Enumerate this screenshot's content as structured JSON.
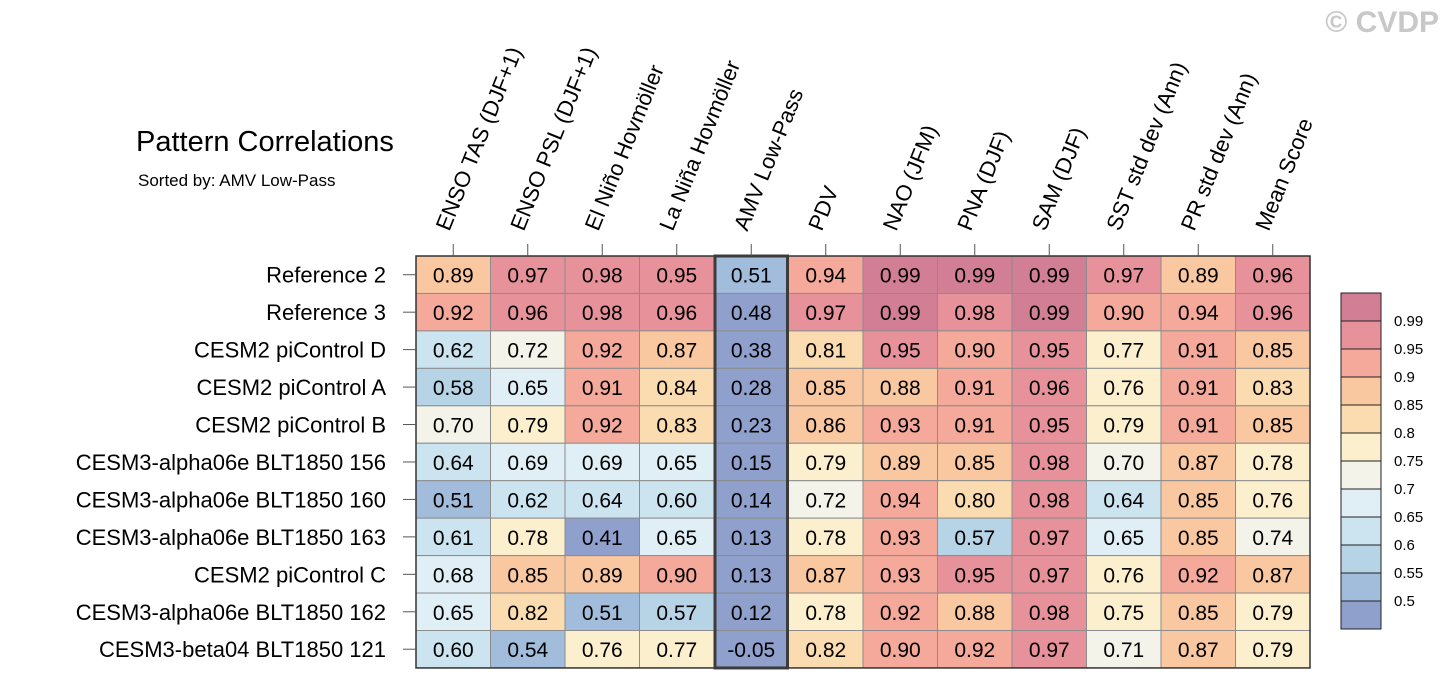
{
  "watermark": "© CVDP",
  "chart_data": {
    "type": "heatmap",
    "title": "Pattern Correlations",
    "subtitle": "Sorted by: AMV Low-Pass",
    "highlighted_column": "AMV Low-Pass",
    "columns": [
      "ENSO TAS (DJF+1)",
      "ENSO PSL (DJF+1)",
      "El Niño Hovmöller",
      "La Niña Hovmöller",
      "AMV Low-Pass",
      "PDV",
      "NAO (JFM)",
      "PNA (DJF)",
      "SAM (DJF)",
      "SST std dev (Ann)",
      "PR std dev (Ann)",
      "Mean Score"
    ],
    "rows": [
      {
        "name": "Reference 2",
        "values": [
          "0.89",
          "0.97",
          "0.98",
          "0.95",
          "0.51",
          "0.94",
          "0.99",
          "0.99",
          "0.99",
          "0.97",
          "0.89",
          "0.96"
        ]
      },
      {
        "name": "Reference 3",
        "values": [
          "0.92",
          "0.96",
          "0.98",
          "0.96",
          "0.48",
          "0.97",
          "0.99",
          "0.98",
          "0.99",
          "0.90",
          "0.94",
          "0.96"
        ]
      },
      {
        "name": "CESM2 piControl D",
        "values": [
          "0.62",
          "0.72",
          "0.92",
          "0.87",
          "0.38",
          "0.81",
          "0.95",
          "0.90",
          "0.95",
          "0.77",
          "0.91",
          "0.85"
        ]
      },
      {
        "name": "CESM2 piControl A",
        "values": [
          "0.58",
          "0.65",
          "0.91",
          "0.84",
          "0.28",
          "0.85",
          "0.88",
          "0.91",
          "0.96",
          "0.76",
          "0.91",
          "0.83"
        ]
      },
      {
        "name": "CESM2 piControl B",
        "values": [
          "0.70",
          "0.79",
          "0.92",
          "0.83",
          "0.23",
          "0.86",
          "0.93",
          "0.91",
          "0.95",
          "0.79",
          "0.91",
          "0.85"
        ]
      },
      {
        "name": "CESM3-alpha06e BLT1850 156",
        "values": [
          "0.64",
          "0.69",
          "0.69",
          "0.65",
          "0.15",
          "0.79",
          "0.89",
          "0.85",
          "0.98",
          "0.70",
          "0.87",
          "0.78"
        ]
      },
      {
        "name": "CESM3-alpha06e BLT1850 160",
        "values": [
          "0.51",
          "0.62",
          "0.64",
          "0.60",
          "0.14",
          "0.72",
          "0.94",
          "0.80",
          "0.98",
          "0.64",
          "0.85",
          "0.76"
        ]
      },
      {
        "name": "CESM3-alpha06e BLT1850 163",
        "values": [
          "0.61",
          "0.78",
          "0.41",
          "0.65",
          "0.13",
          "0.78",
          "0.93",
          "0.57",
          "0.97",
          "0.65",
          "0.85",
          "0.74"
        ]
      },
      {
        "name": "CESM2 piControl C",
        "values": [
          "0.68",
          "0.85",
          "0.89",
          "0.90",
          "0.13",
          "0.87",
          "0.93",
          "0.95",
          "0.97",
          "0.76",
          "0.92",
          "0.87"
        ]
      },
      {
        "name": "CESM3-alpha06e BLT1850 162",
        "values": [
          "0.65",
          "0.82",
          "0.51",
          "0.57",
          "0.12",
          "0.78",
          "0.92",
          "0.88",
          "0.98",
          "0.75",
          "0.85",
          "0.79"
        ]
      },
      {
        "name": "CESM3-beta04 BLT1850 121",
        "values": [
          "0.60",
          "0.54",
          "0.76",
          "0.77",
          "-0.05",
          "0.82",
          "0.90",
          "0.92",
          "0.97",
          "0.71",
          "0.87",
          "0.79"
        ]
      }
    ],
    "colorbar": {
      "labels": [
        "0.99",
        "0.95",
        "0.9",
        "0.85",
        "0.8",
        "0.75",
        "0.7",
        "0.65",
        "0.6",
        "0.55",
        "0.5"
      ],
      "bins": [
        {
          "min": 0.99,
          "color": "#d27f95"
        },
        {
          "min": 0.95,
          "color": "#e7929b"
        },
        {
          "min": 0.9,
          "color": "#f4a99a"
        },
        {
          "min": 0.85,
          "color": "#f9c8a1"
        },
        {
          "min": 0.8,
          "color": "#fbdcb0"
        },
        {
          "min": 0.75,
          "color": "#fcefcd"
        },
        {
          "min": 0.7,
          "color": "#f3f3ea"
        },
        {
          "min": 0.65,
          "color": "#e0eef5"
        },
        {
          "min": 0.6,
          "color": "#cce4ef"
        },
        {
          "min": 0.55,
          "color": "#b6d4e6"
        },
        {
          "min": 0.5,
          "color": "#a2bcdb"
        },
        {
          "min": -1.0,
          "color": "#8fa0cd"
        }
      ]
    }
  }
}
